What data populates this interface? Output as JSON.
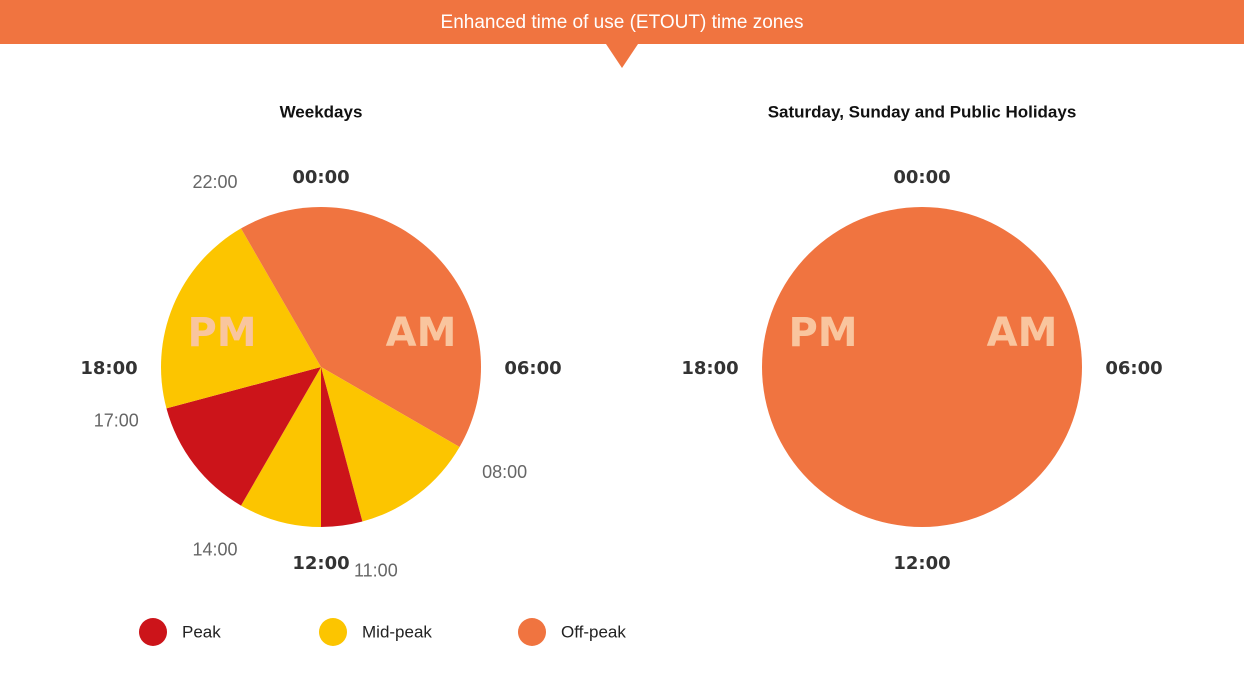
{
  "header": {
    "title": "Enhanced time of use (ETOUT) time zones"
  },
  "legend": [
    {
      "name": "Peak",
      "color": "#cc141a"
    },
    {
      "name": "Mid-peak",
      "color": "#fcc500"
    },
    {
      "name": "Off-peak",
      "color": "#f07440"
    }
  ],
  "chart_data": [
    {
      "type": "pie",
      "title": "Weekdays",
      "categories": [
        "Off-peak",
        "Mid-peak",
        "Peak",
        "Mid-peak",
        "Peak",
        "Mid-peak",
        "Off-peak"
      ],
      "values": [
        8,
        3,
        1,
        2,
        3,
        5,
        2
      ],
      "boundary_labels": [
        null,
        "08:00",
        "11:00",
        null,
        "14:00",
        "17:00",
        "22:00"
      ],
      "quarter_labels": [
        "00:00",
        "06:00",
        "12:00",
        "18:00"
      ],
      "half_labels": [
        "AM",
        "PM"
      ]
    },
    {
      "type": "pie",
      "title": "Saturday, Sunday and Public Holidays",
      "categories": [
        "Off-peak"
      ],
      "values": [
        24
      ],
      "boundary_labels": [
        null
      ],
      "quarter_labels": [
        "00:00",
        "06:00",
        "12:00",
        "18:00"
      ],
      "half_labels": [
        "AM",
        "PM"
      ]
    }
  ]
}
